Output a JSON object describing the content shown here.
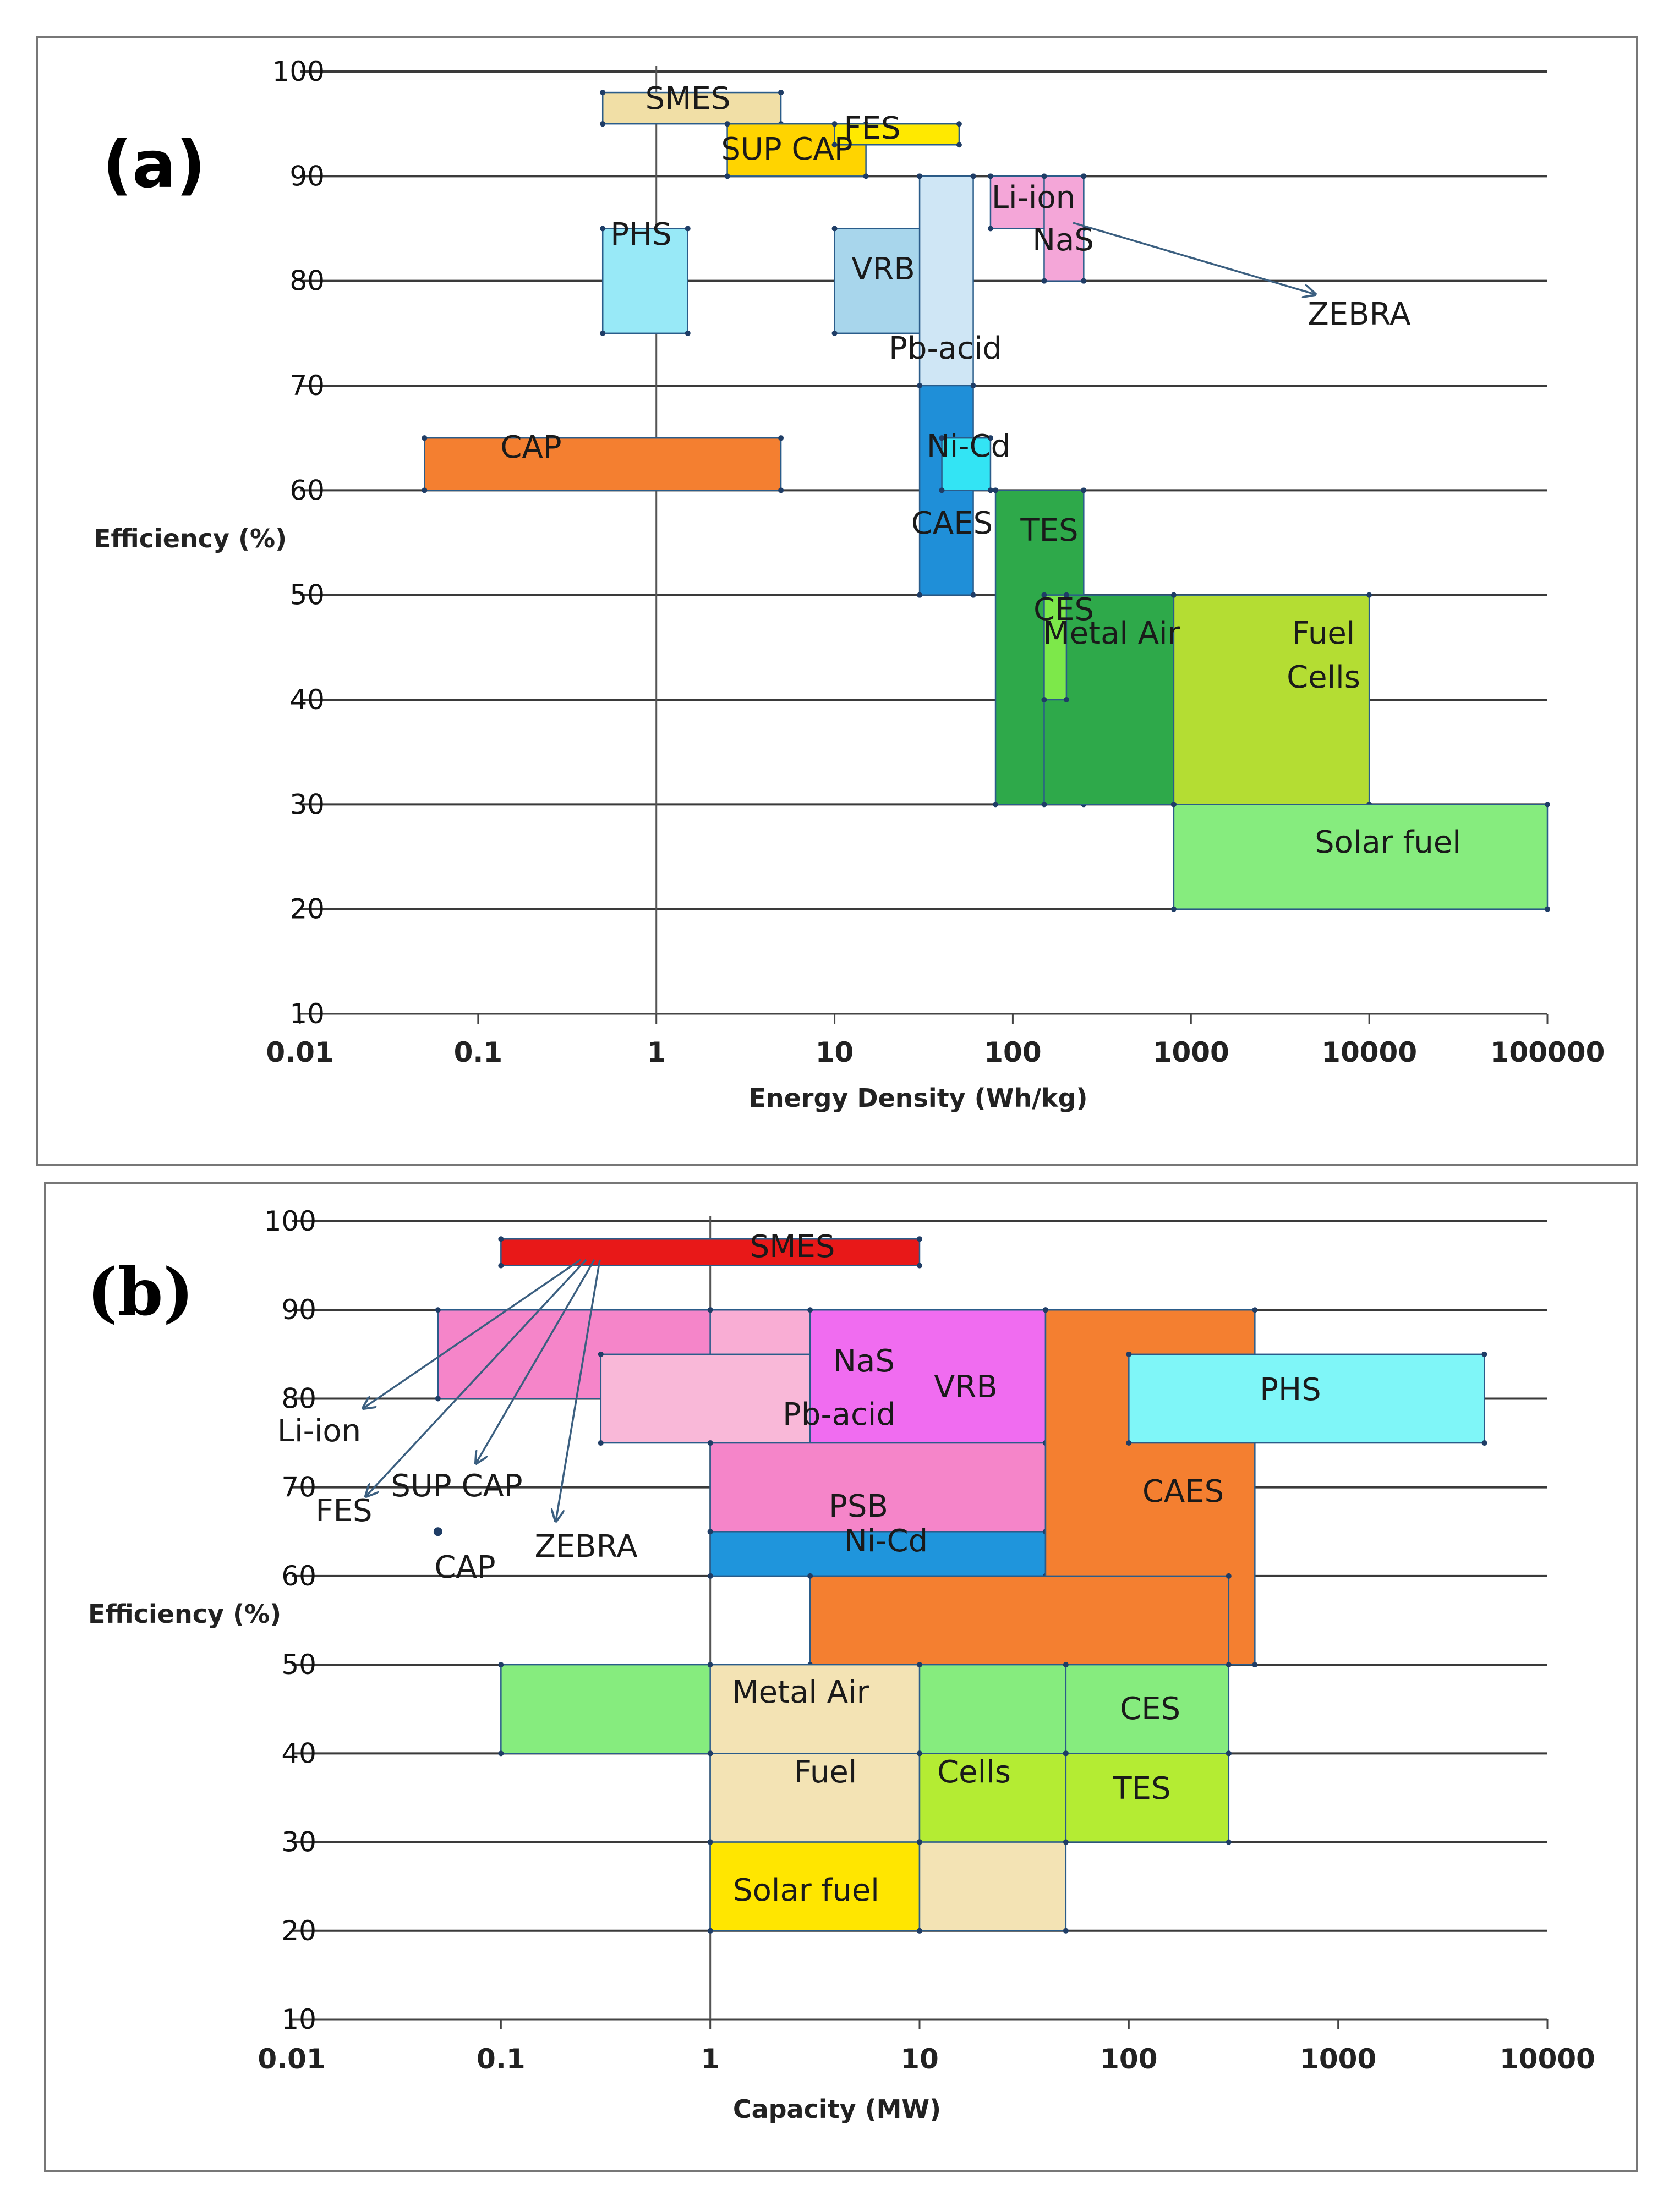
{
  "chart_data": [
    {
      "type": "range-box",
      "panel_label": "(a)",
      "xlabel": "Energy Density (Wh/kg)",
      "ylabel": "Efficiency (%)",
      "xscale": "log",
      "xlim": [
        0.01,
        100000
      ],
      "ylim": [
        10,
        100
      ],
      "x_ticks": [
        "0.01",
        "0.1",
        "1",
        "10",
        "100",
        "1000",
        "10000",
        "100000"
      ],
      "y_ticks": [
        "10",
        "20",
        "30",
        "40",
        "50",
        "60",
        "70",
        "80",
        "90",
        "100"
      ],
      "grid": "horizontal",
      "boxes": [
        {
          "name": "SMES",
          "label": "SMES",
          "x": [
            0.5,
            5
          ],
          "y": [
            95,
            98
          ],
          "color": "#f1dfa6"
        },
        {
          "name": "SUP CAP",
          "label": "SUP CAP",
          "x": [
            2.5,
            15
          ],
          "y": [
            90,
            95
          ],
          "color": "#ffd400"
        },
        {
          "name": "FES",
          "label": "FES",
          "x": [
            10,
            50
          ],
          "y": [
            93,
            95
          ],
          "color": "#ffe900"
        },
        {
          "name": "PHS",
          "label": "PHS",
          "x": [
            0.5,
            1.5
          ],
          "y": [
            75,
            85
          ],
          "color": "#98e9f7"
        },
        {
          "name": "VRB",
          "label": "VRB",
          "x": [
            10,
            50
          ],
          "y": [
            75,
            85
          ],
          "color": "#a8d6ec"
        },
        {
          "name": "Li-ion",
          "label": "Li-ion",
          "x": [
            75,
            250
          ],
          "y": [
            85,
            90
          ],
          "color": "#f4a6d8"
        },
        {
          "name": "NaS",
          "label": "NaS",
          "x": [
            150,
            250
          ],
          "y": [
            80,
            90
          ],
          "color": "#f4a6d8"
        },
        {
          "name": "Pb-acid",
          "label": "Pb-acid",
          "x": [
            30,
            60
          ],
          "y": [
            70,
            90
          ],
          "color": "#cfe6f5"
        },
        {
          "name": "CAES",
          "label": "CAES",
          "x": [
            30,
            60
          ],
          "y": [
            50,
            70
          ],
          "color": "#1f8fd8"
        },
        {
          "name": "Ni-Cd",
          "label": "Ni-Cd",
          "x": [
            40,
            75
          ],
          "y": [
            60,
            65
          ],
          "color": "#33e4f4"
        },
        {
          "name": "CAP",
          "label": "CAP",
          "x": [
            0.05,
            5
          ],
          "y": [
            60,
            65
          ],
          "color": "#f47f30"
        },
        {
          "name": "TES",
          "label": "TES",
          "x": [
            80,
            250
          ],
          "y": [
            30,
            60
          ],
          "color": "#2ea94a"
        },
        {
          "name": "Metal Air",
          "label": "Metal Air",
          "x": [
            150,
            800
          ],
          "y": [
            30,
            50
          ],
          "color": "#2ea94a"
        },
        {
          "name": "CES",
          "label": "CES",
          "x": [
            150,
            200
          ],
          "y": [
            40,
            50
          ],
          "color": "#7de84a"
        },
        {
          "name": "Fuel Cells",
          "label": "Fuel Cells",
          "x": [
            800,
            10000
          ],
          "y": [
            30,
            50
          ],
          "color": "#b4dd33"
        },
        {
          "name": "Solar fuel",
          "label": "Solar fuel",
          "x": [
            800,
            100000
          ],
          "y": [
            20,
            30
          ],
          "color": "#86ec7e"
        }
      ],
      "annotations": [
        {
          "text": "ZEBRA",
          "arrow_from": "Li-ion"
        }
      ]
    },
    {
      "type": "range-box",
      "panel_label": "(b)",
      "xlabel": "Capacity (MW)",
      "ylabel": "Efficiency (%)",
      "xscale": "log",
      "xlim": [
        0.01,
        10000
      ],
      "ylim": [
        10,
        100
      ],
      "x_ticks": [
        "0.01",
        "0.1",
        "1",
        "10",
        "100",
        "1000",
        "10000"
      ],
      "y_ticks": [
        "10",
        "20",
        "30",
        "40",
        "50",
        "60",
        "70",
        "80",
        "90",
        "100"
      ],
      "grid": "horizontal",
      "boxes": [
        {
          "name": "SMES",
          "label": "SMES",
          "x": [
            0.1,
            10
          ],
          "y": [
            95,
            98
          ],
          "color": "#e81818"
        },
        {
          "name": "Li-ion",
          "label": "",
          "x": [
            0.05,
            1
          ],
          "y": [
            80,
            90
          ],
          "color": "#f585c9"
        },
        {
          "name": "NaS",
          "label": "NaS",
          "x": [
            1,
            40
          ],
          "y": [
            75,
            90
          ],
          "color": "#f9add4"
        },
        {
          "name": "Pb-acid",
          "label": "Pb-acid",
          "x": [
            0.3,
            15
          ],
          "y": [
            75,
            85
          ],
          "color": "#f9b8d8"
        },
        {
          "name": "VRB",
          "label": "VRB",
          "x": [
            3,
            40
          ],
          "y": [
            65,
            90
          ],
          "color": "#f06cf0"
        },
        {
          "name": "PSB",
          "label": "PSB",
          "x": [
            1,
            40
          ],
          "y": [
            65,
            75
          ],
          "color": "#f585c9"
        },
        {
          "name": "Ni-Cd",
          "label": "Ni-Cd",
          "x": [
            1,
            40
          ],
          "y": [
            60,
            65
          ],
          "color": "#1f95dc"
        },
        {
          "name": "CAES",
          "label": "CAES",
          "x": [
            40,
            400
          ],
          "y": [
            50,
            90
          ],
          "color": "#f47f30"
        },
        {
          "name": "CAES-lower",
          "label": "",
          "x": [
            3,
            300
          ],
          "y": [
            50,
            60
          ],
          "color": "#f47f30"
        },
        {
          "name": "PHS",
          "label": "PHS",
          "x": [
            100,
            5000
          ],
          "y": [
            75,
            85
          ],
          "color": "#7ff6f8"
        },
        {
          "name": "Fuel Cells",
          "label": "",
          "x": [
            0.1,
            50
          ],
          "y": [
            40,
            50
          ],
          "color": "#86ec7e"
        },
        {
          "name": "CES",
          "label": "CES",
          "x": [
            50,
            300
          ],
          "y": [
            40,
            50
          ],
          "color": "#86ec7e"
        },
        {
          "name": "Metal Air",
          "label": "Metal Air",
          "x": [
            1,
            10
          ],
          "y": [
            40,
            50
          ],
          "color": "#f3e3b4"
        },
        {
          "name": "Fuel",
          "label": "Fuel",
          "x": [
            1,
            10
          ],
          "y": [
            30,
            40
          ],
          "color": "#f3e3b4"
        },
        {
          "name": "Cells",
          "label": "Cells",
          "x": [
            10,
            50
          ],
          "y": [
            30,
            40
          ],
          "color": "#b4ec33"
        },
        {
          "name": "TES",
          "label": "TES",
          "x": [
            50,
            300
          ],
          "y": [
            30,
            40
          ],
          "color": "#b4ec33"
        },
        {
          "name": "Solar fuel",
          "label": "Solar fuel",
          "x": [
            1,
            10
          ],
          "y": [
            20,
            30
          ],
          "color": "#ffe600"
        },
        {
          "name": "Solar fuel-ext",
          "label": "",
          "x": [
            10,
            50
          ],
          "y": [
            20,
            30
          ],
          "color": "#f3e3b4"
        }
      ],
      "points": [
        {
          "name": "CAP",
          "x": 0.05,
          "y": 65
        }
      ],
      "annotations": [
        {
          "text": "Li-ion",
          "arrow_to": [
            0.02,
            80
          ]
        },
        {
          "text": "FES",
          "arrow_to": [
            0.022,
            70
          ]
        },
        {
          "text": "SUP CAP",
          "arrow_to": [
            0.08,
            74
          ]
        },
        {
          "text": "ZEBRA",
          "arrow_to": [
            0.16,
            66
          ]
        },
        {
          "text": "CAP",
          "arrow_to": null
        }
      ]
    }
  ]
}
